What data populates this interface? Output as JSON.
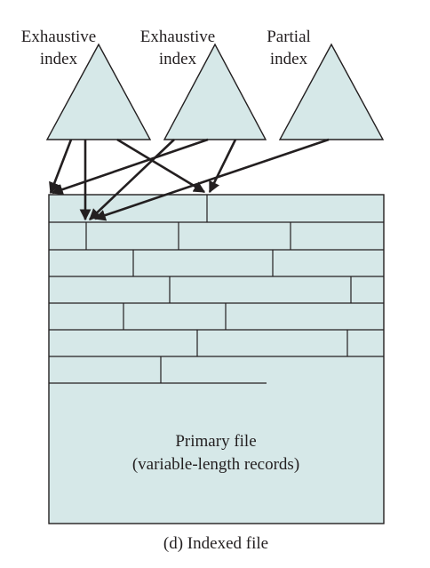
{
  "indexes": [
    {
      "label_line1": "Exhaustive",
      "label_line2": "index"
    },
    {
      "label_line1": "Exhaustive",
      "label_line2": "index"
    },
    {
      "label_line1": "Partial",
      "label_line2": "index"
    }
  ],
  "primary_file": {
    "title": "Primary file",
    "subtitle": "(variable-length records)"
  },
  "caption": "(d) Indexed file",
  "colors": {
    "fill": "#d6e8e8",
    "stroke": "#231f20"
  }
}
